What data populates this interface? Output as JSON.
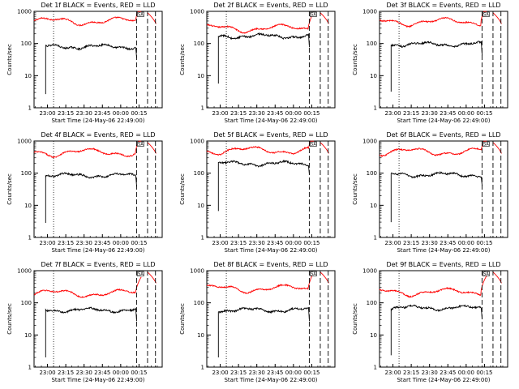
{
  "chart_data": [
    {
      "type": "line",
      "title": "Det 1f BLACK = Events, RED = LLD",
      "xlabel": "Start Time (24-May-06 22:49:00)",
      "ylabel": "Counts/sec",
      "yscale": "log",
      "ylim": [
        1,
        1000
      ],
      "yticks": [
        "1",
        "10",
        "100",
        "1000"
      ],
      "xticks": [
        "23:00",
        "23:15",
        "23:30",
        "23:45",
        "00:00",
        "00:15"
      ],
      "xlim_minutes": [
        0,
        105
      ],
      "events_rate_level": 80,
      "lld_rate_level": 500,
      "series": [
        {
          "name": "Events",
          "color": "#000000"
        },
        {
          "name": "LLD",
          "color": "#ff0000"
        }
      ],
      "markers_text": "SA"
    },
    {
      "type": "line",
      "title": "Det 2f BLACK = Events, RED = LLD",
      "xlabel": "Start Time (24-May-06 22:49:00)",
      "ylabel": "Counts/sec",
      "yscale": "log",
      "ylim": [
        1,
        1000
      ],
      "yticks": [
        "1",
        "10",
        "100",
        "1000"
      ],
      "xticks": [
        "23:00",
        "23:15",
        "23:30",
        "23:45",
        "00:00",
        "00:15"
      ],
      "xlim_minutes": [
        0,
        105
      ],
      "events_rate_level": 170,
      "lld_rate_level": 300,
      "series": [
        {
          "name": "Events",
          "color": "#000000"
        },
        {
          "name": "LLD",
          "color": "#ff0000"
        }
      ],
      "markers_text": "SA"
    },
    {
      "type": "line",
      "title": "Det 3f BLACK = Events, RED = LLD",
      "xlabel": "Start Time (24-May-06 22:49:00)",
      "ylabel": "Counts/sec",
      "yscale": "log",
      "ylim": [
        1,
        1000
      ],
      "yticks": [
        "1",
        "10",
        "100",
        "1000"
      ],
      "xticks": [
        "23:00",
        "23:15",
        "23:30",
        "23:45",
        "00:00",
        "00:15"
      ],
      "xlim_minutes": [
        0,
        105
      ],
      "events_rate_level": 95,
      "lld_rate_level": 480,
      "series": [
        {
          "name": "Events",
          "color": "#000000"
        },
        {
          "name": "LLD",
          "color": "#ff0000"
        }
      ],
      "markers_text": "SA"
    },
    {
      "type": "line",
      "title": "Det 4f BLACK = Events, RED = LLD",
      "xlabel": "Start Time (24-May-06 22:49:00)",
      "ylabel": "Counts/sec",
      "yscale": "log",
      "ylim": [
        1,
        1000
      ],
      "yticks": [
        "1",
        "10",
        "100",
        "1000"
      ],
      "xticks": [
        "23:00",
        "23:15",
        "23:30",
        "23:45",
        "00:00",
        "00:15"
      ],
      "xlim_minutes": [
        0,
        105
      ],
      "events_rate_level": 85,
      "lld_rate_level": 450,
      "series": [
        {
          "name": "Events",
          "color": "#000000"
        },
        {
          "name": "LLD",
          "color": "#ff0000"
        }
      ],
      "markers_text": "SA"
    },
    {
      "type": "line",
      "title": "Det 5f BLACK = Events, RED = LLD",
      "xlabel": "Start Time (24-May-06 22:49:00)",
      "ylabel": "Counts/sec",
      "yscale": "log",
      "ylim": [
        1,
        1000
      ],
      "yticks": [
        "1",
        "10",
        "100",
        "1000"
      ],
      "xticks": [
        "23:00",
        "23:15",
        "23:30",
        "23:45",
        "00:00",
        "00:15"
      ],
      "xlim_minutes": [
        0,
        105
      ],
      "events_rate_level": 200,
      "lld_rate_level": 520,
      "series": [
        {
          "name": "Events",
          "color": "#000000"
        },
        {
          "name": "LLD",
          "color": "#ff0000"
        }
      ],
      "markers_text": "SA"
    },
    {
      "type": "line",
      "title": "Det 6f BLACK = Events, RED = LLD",
      "xlabel": "Start Time (24-May-06 22:49:00)",
      "ylabel": "Counts/sec",
      "yscale": "log",
      "ylim": [
        1,
        1000
      ],
      "yticks": [
        "1",
        "10",
        "100",
        "1000"
      ],
      "xticks": [
        "23:00",
        "23:15",
        "23:30",
        "23:45",
        "00:00",
        "00:15"
      ],
      "xlim_minutes": [
        0,
        105
      ],
      "events_rate_level": 90,
      "lld_rate_level": 470,
      "series": [
        {
          "name": "Events",
          "color": "#000000"
        },
        {
          "name": "LLD",
          "color": "#ff0000"
        }
      ],
      "markers_text": "SA"
    },
    {
      "type": "line",
      "title": "Det 7f BLACK = Events, RED = LLD",
      "xlabel": "Start Time (24-May-06 22:49:00)",
      "ylabel": "Counts/sec",
      "yscale": "log",
      "ylim": [
        1,
        1000
      ],
      "yticks": [
        "1",
        "10",
        "100",
        "1000"
      ],
      "xticks": [
        "23:00",
        "23:15",
        "23:30",
        "23:45",
        "00:00",
        "00:15"
      ],
      "xlim_minutes": [
        0,
        105
      ],
      "events_rate_level": 60,
      "lld_rate_level": 200,
      "series": [
        {
          "name": "Events",
          "color": "#000000"
        },
        {
          "name": "LLD",
          "color": "#ff0000"
        }
      ],
      "markers_text": "SA"
    },
    {
      "type": "line",
      "title": "Det 8f BLACK = Events, RED = LLD",
      "xlabel": "Start Time (24-May-06 22:49:00)",
      "ylabel": "Counts/sec",
      "yscale": "log",
      "ylim": [
        1,
        1000
      ],
      "yticks": [
        "1",
        "10",
        "100",
        "1000"
      ],
      "xticks": [
        "23:00",
        "23:15",
        "23:30",
        "23:45",
        "00:00",
        "00:15"
      ],
      "xlim_minutes": [
        0,
        105
      ],
      "events_rate_level": 60,
      "lld_rate_level": 280,
      "series": [
        {
          "name": "Events",
          "color": "#000000"
        },
        {
          "name": "LLD",
          "color": "#ff0000"
        }
      ],
      "markers_text": "SA"
    },
    {
      "type": "line",
      "title": "Det 9f BLACK = Events, RED = LLD",
      "xlabel": "Start Time (24-May-06 22:49:00)",
      "ylabel": "Counts/sec",
      "yscale": "log",
      "ylim": [
        1,
        1000
      ],
      "yticks": [
        "1",
        "10",
        "100",
        "1000"
      ],
      "xticks": [
        "23:00",
        "23:15",
        "23:30",
        "23:45",
        "00:00",
        "00:15"
      ],
      "xlim_minutes": [
        0,
        105
      ],
      "events_rate_level": 70,
      "lld_rate_level": 220,
      "series": [
        {
          "name": "Events",
          "color": "#000000"
        },
        {
          "name": "LLD",
          "color": "#ff0000"
        }
      ],
      "markers_text": "SA"
    }
  ]
}
